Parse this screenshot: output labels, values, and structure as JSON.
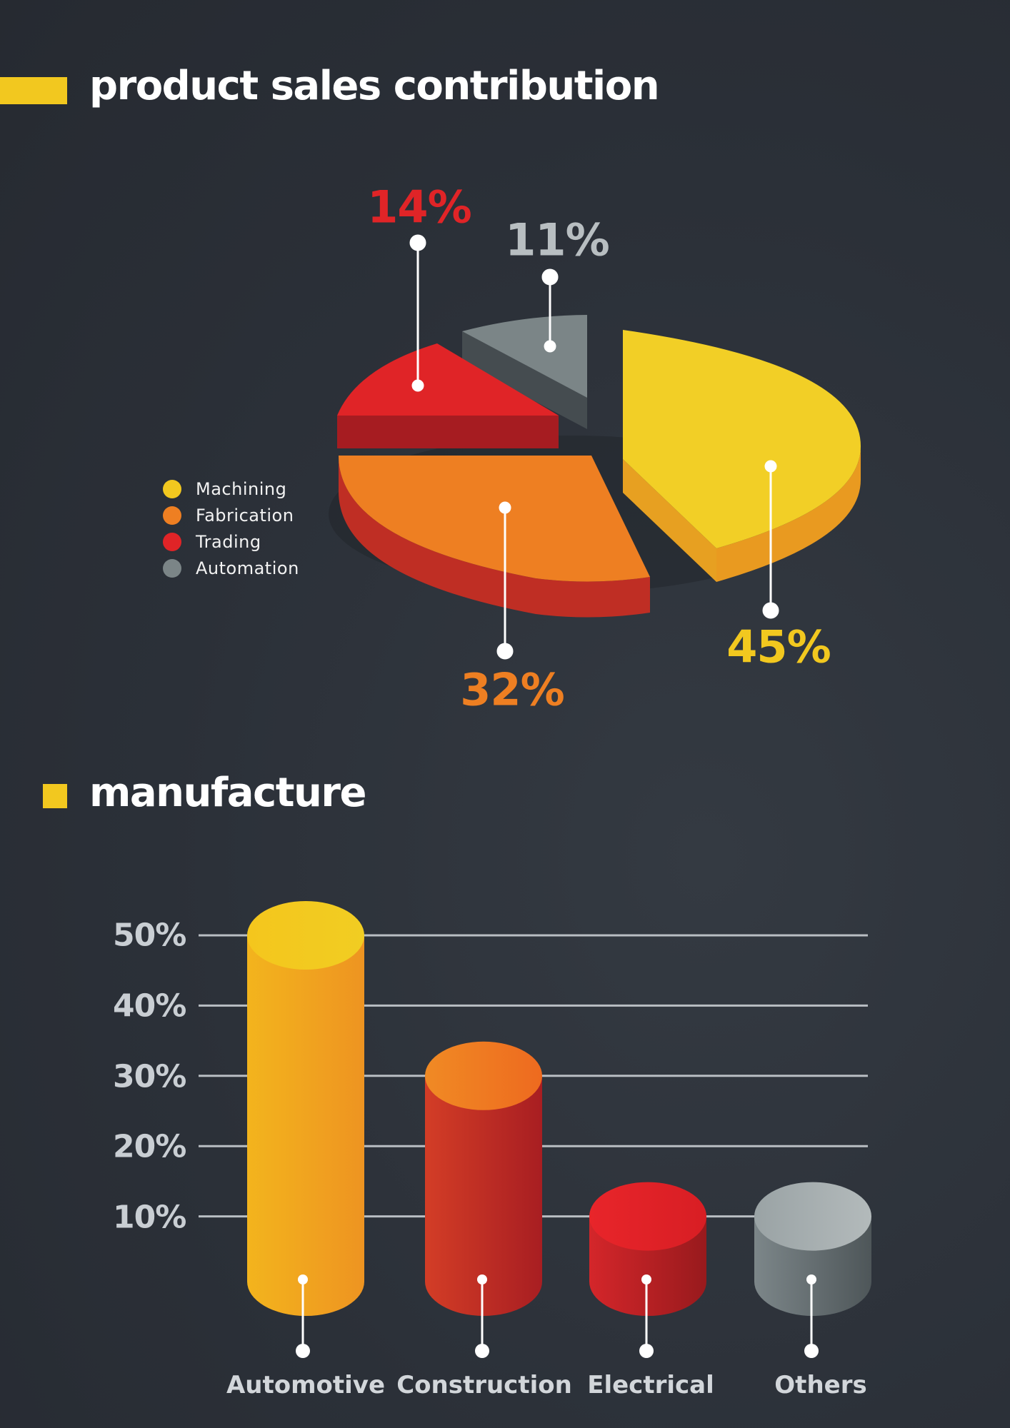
{
  "sections": {
    "pie_title": "product sales contribution",
    "bar_title": "manufacture"
  },
  "colors": {
    "accent": "#f2c81f",
    "machining": "#f2c81f",
    "fabrication": "#ee7f22",
    "trading": "#e02427",
    "automation": "#7b8587"
  },
  "chart_data": [
    {
      "type": "pie",
      "title": "product sales contribution",
      "slices": [
        {
          "name": "Machining",
          "value": 45,
          "label": "45%",
          "color": "#f2c81f"
        },
        {
          "name": "Fabrication",
          "value": 32,
          "label": "32%",
          "color": "#ee7f22"
        },
        {
          "name": "Trading",
          "value": 14,
          "label": "14%",
          "color": "#e02427"
        },
        {
          "name": "Automation",
          "value": 11,
          "label": "11%",
          "color": "#7b8587"
        }
      ],
      "legend": [
        "Machining",
        "Fabrication",
        "Trading",
        "Automation"
      ],
      "legend_position": "left",
      "style": "3d-exploded"
    },
    {
      "type": "bar",
      "title": "manufacture",
      "categories": [
        "Automotive",
        "Construction",
        "Electrical",
        "Others"
      ],
      "values": [
        50,
        30,
        10,
        10
      ],
      "colors": [
        "#f2b01f",
        "#d63a22",
        "#d91f24",
        "#8d979a"
      ],
      "ytick_labels": [
        "50%",
        "40%",
        "30%",
        "20%",
        "10%"
      ],
      "ylim": [
        0,
        50
      ],
      "grid": true,
      "style": "3d-cylinder"
    }
  ]
}
